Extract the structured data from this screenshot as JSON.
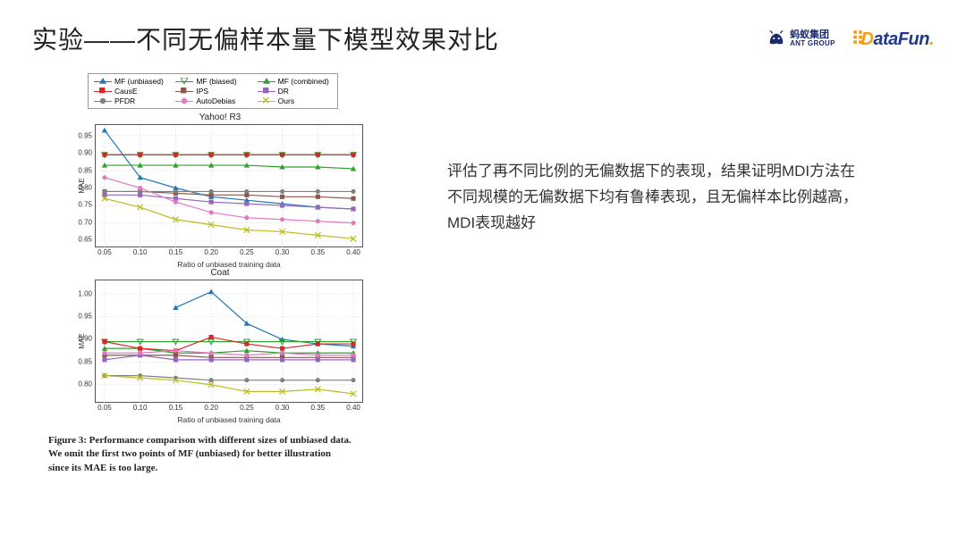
{
  "title": "实验——不同无偏样本量下模型效果对比",
  "logos": {
    "ant_cn": "蚂蚁集团",
    "ant_en": "ANT GROUP",
    "datafun": "DataFun."
  },
  "description": "评估了再不同比例的无偏数据下的表现，结果证明MDI方法在不同规模的无偏数据下均有鲁棒表现，且无偏样本比例越高，MDI表现越好",
  "caption": "Figure 3: Performance comparison with different sizes of unbiased data. We omit the first two points of MF (unbiased) for better illustration since its MAE is too large.",
  "legend": [
    {
      "label": "MF (unbiased)",
      "color": "#1f77b4",
      "marker": "triangle"
    },
    {
      "label": "MF (biased)",
      "color": "#2ca02c",
      "marker": "tri_down"
    },
    {
      "label": "MF (combined)",
      "color": "#2ca02c",
      "marker": "triangle"
    },
    {
      "label": "CausE",
      "color": "#d62728",
      "marker": "square"
    },
    {
      "label": "IPS",
      "color": "#8c564b",
      "marker": "square"
    },
    {
      "label": "DR",
      "color": "#9467bd",
      "marker": "square"
    },
    {
      "label": "PFDR",
      "color": "#7f7f7f",
      "marker": "circle"
    },
    {
      "label": "AutoDebias",
      "color": "#e377c2",
      "marker": "circle"
    },
    {
      "label": "Ours",
      "color": "#bcbd22",
      "marker": "x"
    }
  ],
  "x_values": [
    0.05,
    0.1,
    0.15,
    0.2,
    0.25,
    0.3,
    0.35,
    0.4
  ],
  "x_label": "Ratio of unbiased training data",
  "y_label": "MAE",
  "chart_yahoo": {
    "title": "Yahoo! R3",
    "ylim": [
      0.63,
      0.98
    ],
    "yticks": [
      0.65,
      0.7,
      0.75,
      0.8,
      0.85,
      0.9,
      0.95
    ],
    "series": {
      "MF (unbiased)": [
        0.965,
        0.83,
        0.8,
        0.775,
        0.765,
        0.755,
        0.745,
        0.74
      ],
      "MF (biased)": [
        0.895,
        0.895,
        0.895,
        0.895,
        0.895,
        0.895,
        0.895,
        0.895
      ],
      "MF (combined)": [
        0.865,
        0.865,
        0.865,
        0.865,
        0.865,
        0.86,
        0.86,
        0.855
      ],
      "CausE": [
        0.895,
        0.895,
        0.895,
        0.895,
        0.895,
        0.895,
        0.895,
        0.895
      ],
      "IPS": [
        0.79,
        0.79,
        0.785,
        0.78,
        0.78,
        0.775,
        0.775,
        0.77
      ],
      "DR": [
        0.78,
        0.78,
        0.77,
        0.76,
        0.755,
        0.75,
        0.745,
        0.74
      ],
      "PFDR": [
        0.79,
        0.79,
        0.79,
        0.79,
        0.79,
        0.79,
        0.79,
        0.79
      ],
      "AutoDebias": [
        0.83,
        0.8,
        0.76,
        0.73,
        0.715,
        0.71,
        0.705,
        0.7
      ],
      "Ours": [
        0.77,
        0.745,
        0.71,
        0.695,
        0.68,
        0.675,
        0.665,
        0.655
      ]
    }
  },
  "chart_coat": {
    "title": "Coat",
    "ylim": [
      0.76,
      1.03
    ],
    "yticks": [
      0.8,
      0.85,
      0.9,
      0.95,
      1.0
    ],
    "series": {
      "MF (unbiased)": [
        null,
        null,
        0.97,
        1.005,
        0.935,
        0.9,
        0.89,
        0.885
      ],
      "MF (biased)": [
        0.895,
        0.895,
        0.895,
        0.895,
        0.895,
        0.895,
        0.895,
        0.895
      ],
      "MF (combined)": [
        0.88,
        0.88,
        0.87,
        0.87,
        0.875,
        0.87,
        0.87,
        0.87
      ],
      "CausE": [
        0.895,
        0.88,
        0.875,
        0.905,
        0.89,
        0.88,
        0.89,
        0.89
      ],
      "IPS": [
        0.865,
        0.865,
        0.865,
        0.86,
        0.86,
        0.86,
        0.86,
        0.86
      ],
      "DR": [
        0.855,
        0.865,
        0.855,
        0.855,
        0.855,
        0.855,
        0.855,
        0.855
      ],
      "PFDR": [
        0.82,
        0.82,
        0.815,
        0.81,
        0.81,
        0.81,
        0.81,
        0.81
      ],
      "AutoDebias": [
        0.87,
        0.87,
        0.875,
        0.87,
        0.865,
        0.87,
        0.865,
        0.865
      ],
      "Ours": [
        0.82,
        0.815,
        0.81,
        0.8,
        0.785,
        0.785,
        0.79,
        0.78
      ]
    }
  },
  "style": {
    "grid_color": "#d9d9d9",
    "axis_color": "#555555",
    "line_width": 1.2,
    "marker_size": 3.2,
    "tick_fontsize": 8
  }
}
